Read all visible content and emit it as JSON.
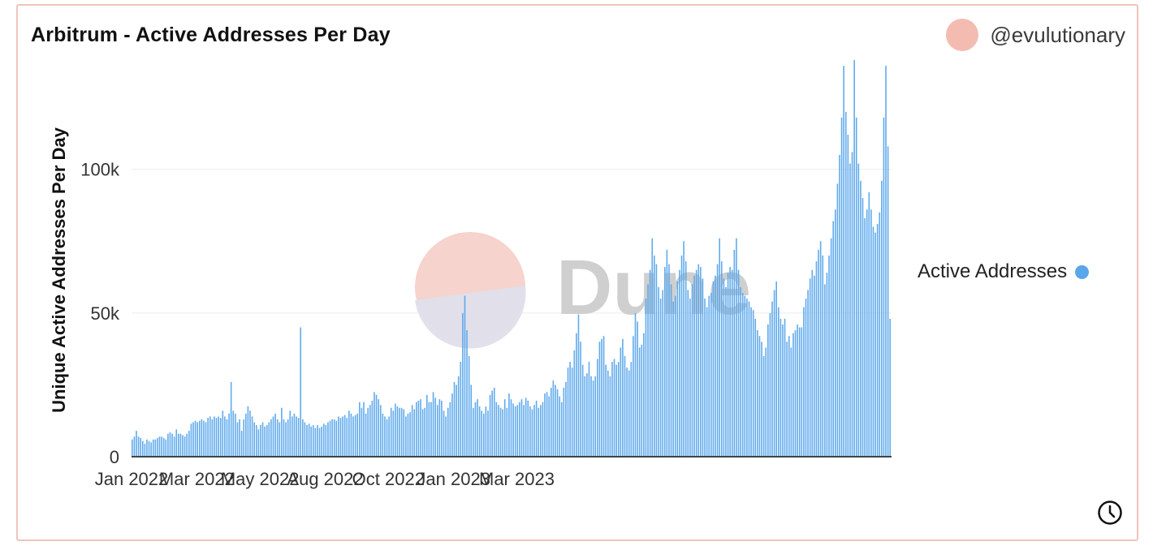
{
  "header": {
    "title": "Arbitrum - Active Addresses Per Day",
    "author": "@evulutionary"
  },
  "watermark": {
    "text": "Dune"
  },
  "colors": {
    "bar": "#5aa6eb",
    "border": "#f0c4bd",
    "avatar": "#f4bcb1"
  },
  "icons": {
    "clock": "clock-icon",
    "avatar": "avatar"
  },
  "chart_data": {
    "type": "bar",
    "title": "Arbitrum - Active Addresses Per Day",
    "ylabel": "Unique Active Addresses Per Day",
    "xlabel": "",
    "ylim": [
      0,
      140000
    ],
    "yticks": [
      {
        "value": 0,
        "label": "0"
      },
      {
        "value": 50000,
        "label": "50k"
      },
      {
        "value": 100000,
        "label": "100k"
      }
    ],
    "xticks": [
      {
        "day": 0,
        "label": "Jan 2022"
      },
      {
        "day": 31,
        "label": "Mar 2022"
      },
      {
        "day": 61,
        "label": "May 2022"
      },
      {
        "day": 92,
        "label": "Aug 2022"
      },
      {
        "day": 122,
        "label": "Oct 2022"
      },
      {
        "day": 153,
        "label": "Jan 2023"
      },
      {
        "day": 183,
        "label": "Mar 2023"
      }
    ],
    "legend": [
      {
        "name": "Active Addresses",
        "color": "#5aa6eb",
        "position": "right"
      }
    ],
    "series": [
      {
        "name": "Active Addresses",
        "values": [
          6000,
          7000,
          9000,
          7000,
          6500,
          5500,
          4500,
          6000,
          5500,
          5000,
          6000,
          6000,
          6500,
          7000,
          7000,
          6500,
          6000,
          8000,
          8500,
          8000,
          7000,
          9500,
          8000,
          8000,
          7500,
          7000,
          8000,
          9000,
          11500,
          12000,
          12500,
          12000,
          12500,
          13000,
          12500,
          12000,
          13500,
          14000,
          13000,
          14000,
          13500,
          14000,
          13500,
          16000,
          14000,
          13000,
          15000,
          26000,
          16000,
          15000,
          12000,
          13000,
          9000,
          13000,
          15000,
          17500,
          16000,
          14000,
          12000,
          11000,
          9500,
          11000,
          12000,
          10500,
          11000,
          12000,
          13000,
          14000,
          15000,
          13000,
          12000,
          17000,
          13000,
          12000,
          13000,
          16000,
          14000,
          15000,
          14000,
          13500,
          45000,
          13000,
          12000,
          11000,
          11500,
          10500,
          11000,
          10000,
          11000,
          10000,
          10500,
          11500,
          11000,
          12000,
          12500,
          13000,
          13000,
          12500,
          14000,
          13500,
          14000,
          14500,
          13500,
          16000,
          15000,
          14000,
          14500,
          15000,
          19000,
          17000,
          19000,
          15000,
          17000,
          18000,
          19500,
          22500,
          21500,
          20000,
          18000,
          15000,
          14000,
          13000,
          14000,
          17000,
          16000,
          18500,
          17500,
          17000,
          17000,
          16500,
          14000,
          15000,
          15500,
          18000,
          16500,
          19000,
          19500,
          20000,
          16500,
          17000,
          21500,
          19000,
          19000,
          22500,
          20500,
          18000,
          20000,
          19500,
          16000,
          14000,
          17000,
          19000,
          22000,
          26000,
          25000,
          28000,
          33000,
          50000,
          56000,
          44000,
          35000,
          25000,
          17000,
          19000,
          20000,
          17500,
          16000,
          15000,
          17500,
          16000,
          21500,
          23000,
          24000,
          19000,
          18000,
          17000,
          16500,
          20000,
          17000,
          22000,
          20000,
          18500,
          17500,
          18000,
          19000,
          20000,
          18000,
          20500,
          19500,
          17500,
          16500,
          18000,
          19500,
          17000,
          18000,
          19000,
          22000,
          22500,
          21000,
          24000,
          26500,
          25000,
          23500,
          21000,
          19000,
          24000,
          26000,
          31000,
          33000,
          31000,
          37000,
          43000,
          49500,
          40000,
          32000,
          28000,
          29000,
          33000,
          28000,
          26500,
          28000,
          34000,
          40000,
          41000,
          42000,
          32000,
          30000,
          28000,
          33000,
          34000,
          32000,
          33000,
          38000,
          41000,
          35000,
          31000,
          30000,
          33000,
          42000,
          50000,
          47000,
          38000,
          39000,
          43000,
          55000,
          60000,
          65000,
          76000,
          70000,
          67000,
          59000,
          55000,
          58000,
          66000,
          72000,
          67000,
          60000,
          54000,
          56000,
          61000,
          65000,
          70000,
          75000,
          68000,
          58000,
          55000,
          60000,
          63000,
          65000,
          67000,
          66000,
          62000,
          55000,
          52000,
          56000,
          57000,
          61000,
          63000,
          67000,
          76000,
          68000,
          62000,
          59000,
          64000,
          66000,
          65000,
          72000,
          76000,
          65000,
          59000,
          57000,
          56000,
          55000,
          54000,
          52000,
          51000,
          48000,
          44000,
          42000,
          40000,
          35000,
          38000,
          46000,
          50000,
          54000,
          58000,
          61000,
          52000,
          48000,
          46000,
          48000,
          40000,
          42000,
          38000,
          43000,
          44000,
          46000,
          45000,
          45000,
          52000,
          55000,
          58000,
          62000,
          65000,
          63000,
          68000,
          72000,
          75000,
          70000,
          60000,
          64000,
          70000,
          76000,
          82000,
          86000,
          95000,
          105000,
          118000,
          136000,
          120000,
          112000,
          102000,
          106000,
          138000,
          118000,
          102000,
          96000,
          90000,
          83000,
          86000,
          92000,
          86000,
          80000,
          78000,
          81000,
          85000,
          96000,
          118000,
          136000,
          108000,
          48000
        ]
      }
    ]
  }
}
